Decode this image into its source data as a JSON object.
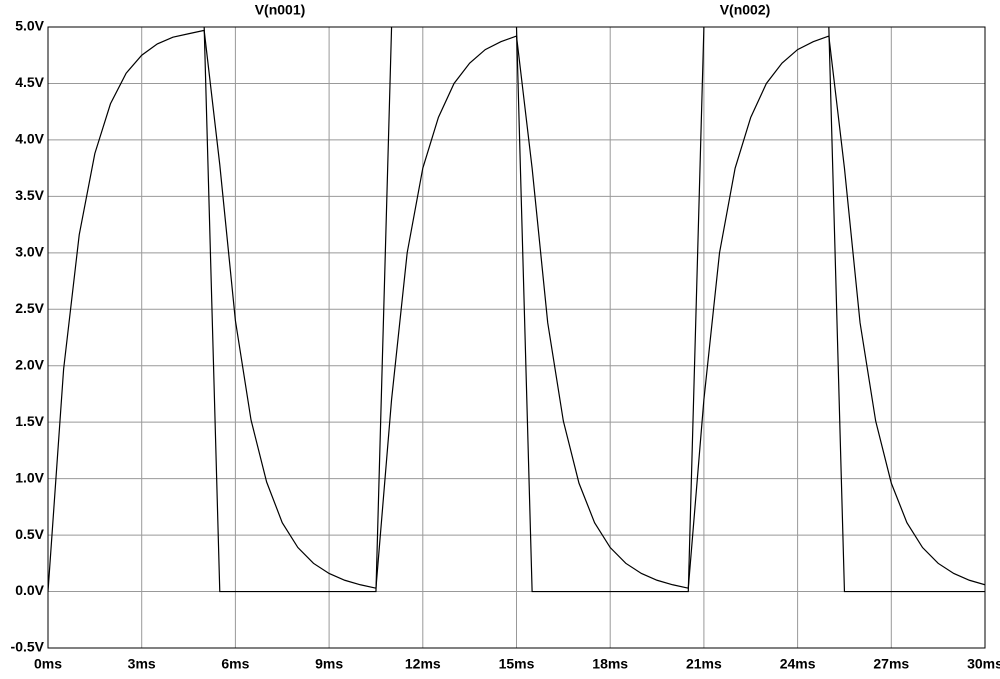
{
  "chart_data": {
    "type": "line",
    "grid": true,
    "xlim": [
      0,
      30
    ],
    "ylim": [
      -0.5,
      5
    ],
    "xticks": [
      {
        "value": 0,
        "label": "0ms"
      },
      {
        "value": 3,
        "label": "3ms"
      },
      {
        "value": 6,
        "label": "6ms"
      },
      {
        "value": 9,
        "label": "9ms"
      },
      {
        "value": 12,
        "label": "12ms"
      },
      {
        "value": 15,
        "label": "15ms"
      },
      {
        "value": 18,
        "label": "18ms"
      },
      {
        "value": 21,
        "label": "21ms"
      },
      {
        "value": 24,
        "label": "24ms"
      },
      {
        "value": 27,
        "label": "27ms"
      },
      {
        "value": 30,
        "label": "30ms"
      }
    ],
    "yticks": [
      {
        "value": -0.5,
        "label": "-0.5V"
      },
      {
        "value": 0,
        "label": "0.0V"
      },
      {
        "value": 0.5,
        "label": "0.5V"
      },
      {
        "value": 1,
        "label": "1.0V"
      },
      {
        "value": 1.5,
        "label": "1.5V"
      },
      {
        "value": 2,
        "label": "2.0V"
      },
      {
        "value": 2.5,
        "label": "2.5V"
      },
      {
        "value": 3,
        "label": "3.0V"
      },
      {
        "value": 3.5,
        "label": "3.5V"
      },
      {
        "value": 4,
        "label": "4.0V"
      },
      {
        "value": 4.5,
        "label": "4.5V"
      },
      {
        "value": 5,
        "label": "5.0V"
      }
    ],
    "series": [
      {
        "name": "V(n001)",
        "color": "#000000",
        "x": [
          5,
          5.5,
          10.5,
          11,
          13,
          15,
          15.5,
          20.5,
          21,
          23,
          25,
          25.5,
          30
        ],
        "values": [
          5,
          0,
          0,
          5,
          null,
          5,
          0,
          0,
          5,
          null,
          5,
          0,
          0
        ]
      },
      {
        "name": "V(n002)",
        "color": "#000000",
        "x": [
          0,
          0.5,
          1,
          1.5,
          2,
          2.5,
          3,
          3.5,
          4,
          4.5,
          5,
          5.5,
          6,
          6.5,
          7,
          7.5,
          8,
          8.5,
          9,
          9.5,
          10,
          10.5,
          11,
          11.5,
          12,
          12.5,
          13,
          13.5,
          14,
          14.5,
          15,
          15.5,
          16,
          16.5,
          17,
          17.5,
          18,
          18.5,
          19,
          19.5,
          20,
          20.5,
          21,
          21.5,
          22,
          22.5,
          23,
          23.5,
          24,
          24.5,
          25,
          25.5,
          26,
          26.5,
          27,
          27.5,
          28,
          28.5,
          29,
          29.5,
          30
        ],
        "values": [
          0,
          1.97,
          3.16,
          3.88,
          4.32,
          4.59,
          4.75,
          4.85,
          4.91,
          4.94,
          4.97,
          3.78,
          2.4,
          1.52,
          0.97,
          0.61,
          0.39,
          0.25,
          0.16,
          0.1,
          0.06,
          0.03,
          1.7,
          3.0,
          3.75,
          4.2,
          4.5,
          4.68,
          4.8,
          4.87,
          4.92,
          3.75,
          2.38,
          1.51,
          0.96,
          0.61,
          0.39,
          0.25,
          0.16,
          0.1,
          0.06,
          0.03,
          1.7,
          3.0,
          3.75,
          4.2,
          4.5,
          4.68,
          4.8,
          4.87,
          4.92,
          3.75,
          2.38,
          1.51,
          0.96,
          0.61,
          0.39,
          0.25,
          0.16,
          0.1,
          0.06
        ]
      }
    ]
  }
}
